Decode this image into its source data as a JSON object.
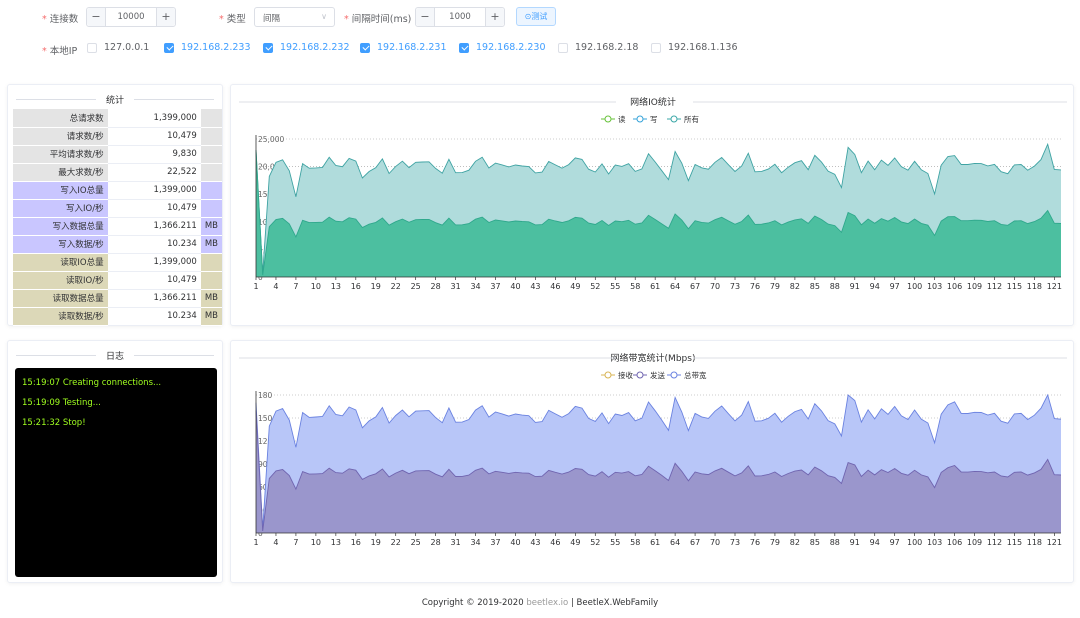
{
  "form": {
    "conn_label": "连接数",
    "conn_value": "10000",
    "type_label": "类型",
    "type_value": "间隔",
    "interval_label": "间隔时间(ms)",
    "interval_value": "1000",
    "test_button": "⊙测试",
    "ip_label": "本地IP",
    "ips": [
      {
        "label": "127.0.0.1",
        "checked": false
      },
      {
        "label": "192.168.2.233",
        "checked": true
      },
      {
        "label": "192.168.2.232",
        "checked": true
      },
      {
        "label": "192.168.2.231",
        "checked": true
      },
      {
        "label": "192.168.2.230",
        "checked": true
      },
      {
        "label": "192.168.2.18",
        "checked": false
      },
      {
        "label": "192.168.1.136",
        "checked": false
      }
    ]
  },
  "stats": {
    "title": "统计",
    "rows": [
      {
        "key": "总请求数",
        "value": "1,399,000",
        "unit": ""
      },
      {
        "key": "请求数/秒",
        "value": "10,479",
        "unit": ""
      },
      {
        "key": "平均请求数/秒",
        "value": "9,830",
        "unit": ""
      },
      {
        "key": "最大求数/秒",
        "value": "22,522",
        "unit": ""
      },
      {
        "key": "写入IO总量",
        "value": "1,399,000",
        "unit": ""
      },
      {
        "key": "写入IO/秒",
        "value": "10,479",
        "unit": ""
      },
      {
        "key": "写入数据总量",
        "value": "1,366.211",
        "unit": "MB"
      },
      {
        "key": "写入数据/秒",
        "value": "10.234",
        "unit": "MB"
      },
      {
        "key": "读取IO总量",
        "value": "1,399,000",
        "unit": ""
      },
      {
        "key": "读取IO/秒",
        "value": "10,479",
        "unit": ""
      },
      {
        "key": "读取数据总量",
        "value": "1,366.211",
        "unit": "MB"
      },
      {
        "key": "读取数据/秒",
        "value": "10.234",
        "unit": "MB"
      }
    ]
  },
  "log": {
    "title": "日志",
    "lines": [
      "15:19:07 Creating connections...",
      "15:19:09 Testing...",
      "15:21:32 Stop!"
    ]
  },
  "footer": {
    "copyright": "Copyright © 2019-2020",
    "site": "beetlex.io",
    "sep": " | ",
    "product": "BeetleX.WebFamily"
  },
  "colors": {
    "accent": "#409eff",
    "io_total": "#6cc3c3",
    "io_write": "#4cbfa0",
    "bw_total": "#8ea2f0",
    "bw_send": "#8a7ec4",
    "log_text": "#a0ff20"
  },
  "chart_data": [
    {
      "type": "area",
      "title": "网络IO统计",
      "legend": [
        "读",
        "写",
        "所有"
      ],
      "legend_position": "top-center",
      "x_ticks": [
        1,
        4,
        7,
        10,
        13,
        16,
        19,
        22,
        25,
        28,
        31,
        34,
        37,
        40,
        43,
        46,
        49,
        52,
        55,
        58,
        61,
        64,
        67,
        70,
        73,
        76,
        79,
        82,
        85,
        88,
        91,
        94,
        97,
        100,
        103,
        106,
        109,
        112,
        115,
        118,
        121
      ],
      "x_range": [
        1,
        122
      ],
      "ylim": [
        0,
        25000
      ],
      "y_ticks": [
        0,
        5000,
        10000,
        15000,
        20000,
        25000
      ],
      "y_tick_labels": [
        "0",
        "5,000",
        "10,000",
        "15,000",
        "20,000",
        "25,000"
      ],
      "grid": true,
      "series": [
        {
          "name": "写",
          "base": 10000,
          "start": 23000,
          "spikes": [
            [
              64,
              1300
            ],
            [
              90,
              1200
            ],
            [
              91,
              1500
            ],
            [
              106,
              1200
            ],
            [
              120,
              1000
            ]
          ],
          "dips": [
            [
              2,
              10000
            ],
            [
              7,
              2000
            ],
            [
              63,
              1500
            ],
            [
              89,
              2000
            ],
            [
              103,
              2000
            ]
          ]
        },
        {
          "name": "所有",
          "base": 20000,
          "start": 23000,
          "spikes": [
            [
              64,
              2500
            ],
            [
              90,
              2500
            ],
            [
              91,
              3000
            ],
            [
              106,
              2500
            ],
            [
              120,
              2000
            ]
          ],
          "dips": [
            [
              2,
              20000
            ],
            [
              7,
              4000
            ],
            [
              63,
              3000
            ],
            [
              89,
              4000
            ],
            [
              103,
              4000
            ]
          ]
        }
      ]
    },
    {
      "type": "area",
      "title": "网络带宽统计(Mbps)",
      "legend": [
        "接收",
        "发送",
        "总带宽"
      ],
      "legend_position": "top-center",
      "x_ticks": [
        1,
        4,
        7,
        10,
        13,
        16,
        19,
        22,
        25,
        28,
        31,
        34,
        37,
        40,
        43,
        46,
        49,
        52,
        55,
        58,
        61,
        64,
        67,
        70,
        73,
        76,
        79,
        82,
        85,
        88,
        91,
        94,
        97,
        100,
        103,
        106,
        109,
        112,
        115,
        118,
        121
      ],
      "x_range": [
        1,
        122
      ],
      "ylim": [
        0,
        180
      ],
      "y_ticks": [
        0,
        30,
        60,
        90,
        120,
        150,
        180
      ],
      "y_tick_labels": [
        "0",
        "30",
        "60",
        "90",
        "120",
        "150",
        "180"
      ],
      "grid": true,
      "series": [
        {
          "name": "发送",
          "base": 78,
          "start": 160,
          "spikes": [
            [
              64,
              12
            ],
            [
              90,
              10
            ],
            [
              91,
              14
            ],
            [
              106,
              12
            ],
            [
              120,
              10
            ]
          ],
          "dips": [
            [
              2,
              78
            ],
            [
              7,
              15
            ],
            [
              63,
              12
            ],
            [
              89,
              14
            ],
            [
              103,
              15
            ]
          ]
        },
        {
          "name": "总带宽",
          "base": 153,
          "start": 170,
          "spikes": [
            [
              64,
              22
            ],
            [
              90,
              20
            ],
            [
              91,
              26
            ],
            [
              106,
              22
            ],
            [
              120,
              18
            ]
          ],
          "dips": [
            [
              2,
              153
            ],
            [
              7,
              30
            ],
            [
              63,
              24
            ],
            [
              89,
              28
            ],
            [
              103,
              28
            ]
          ]
        }
      ]
    }
  ]
}
